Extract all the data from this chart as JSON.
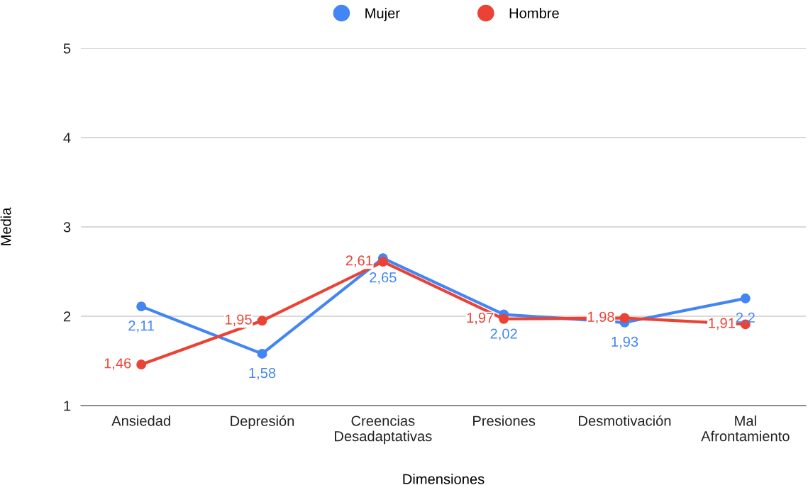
{
  "chart_data": {
    "type": "line",
    "xlabel": "Dimensiones",
    "ylabel": "Media",
    "categories": [
      "Ansiedad",
      "Depresión",
      "Creencias\nDesadaptativas",
      "Presiones",
      "Desmotivación",
      "Mal\nAfrontamiento"
    ],
    "series": [
      {
        "name": "Mujer",
        "color": "#4285f4",
        "values": [
          2.11,
          1.58,
          2.65,
          2.02,
          1.93,
          2.2
        ],
        "value_labels": [
          "2,11",
          "1,58",
          "2,65",
          "2,02",
          "1,93",
          "2,2"
        ]
      },
      {
        "name": "Hombre",
        "color": "#ea4335",
        "values": [
          1.46,
          1.95,
          2.61,
          1.97,
          1.98,
          1.91
        ],
        "value_labels": [
          "1,46",
          "1,95",
          "2,61",
          "1,97",
          "1,98",
          "1,91"
        ]
      }
    ],
    "ylim": [
      1,
      5
    ],
    "yticks": [
      1,
      2,
      3,
      4,
      5
    ],
    "grid": "y",
    "legend": "top",
    "marker": "circle",
    "line_style": "solid"
  }
}
